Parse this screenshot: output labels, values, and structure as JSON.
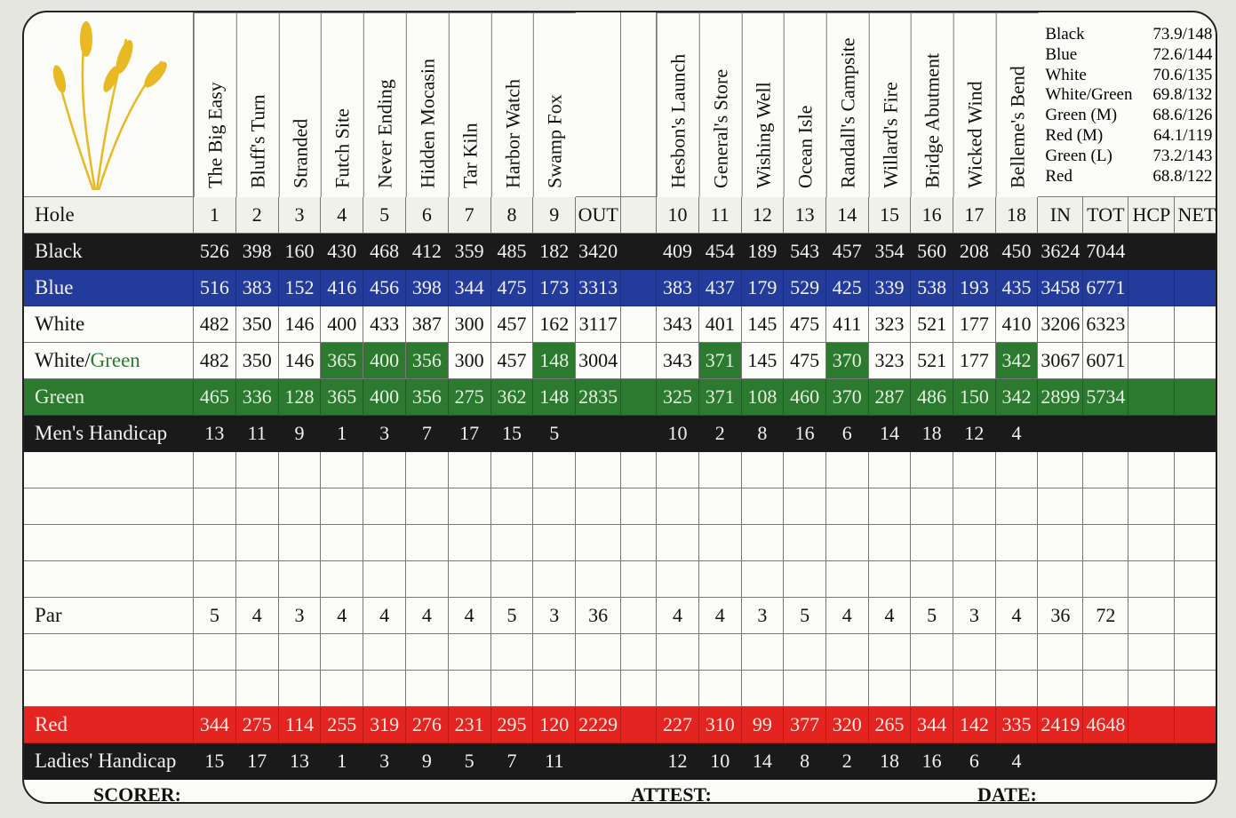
{
  "holes_front": [
    "1",
    "2",
    "3",
    "4",
    "5",
    "6",
    "7",
    "8",
    "9"
  ],
  "holes_back": [
    "10",
    "11",
    "12",
    "13",
    "14",
    "15",
    "16",
    "17",
    "18"
  ],
  "hole_names_front": [
    "The Big Easy",
    "Bluff's Turn",
    "Stranded",
    "Futch Site",
    "Never Ending",
    "Hidden Mocasin",
    "Tar Kiln",
    "Harbor Watch",
    "Swamp Fox"
  ],
  "hole_names_back": [
    "Hesbon's Launch",
    "General's Store",
    "Wishing Well",
    "Ocean Isle",
    "Randall's Campsite",
    "Willard's Fire",
    "Bridge Abutment",
    "Wicked Wind",
    "Belleme's Bend"
  ],
  "ratings": [
    {
      "tee": "Black",
      "value": "73.9/148"
    },
    {
      "tee": "Blue",
      "value": "72.6/144"
    },
    {
      "tee": "White",
      "value": "70.6/135"
    },
    {
      "tee": "White/Green",
      "value": "69.8/132"
    },
    {
      "tee": "Green (M)",
      "value": "68.6/126"
    },
    {
      "tee": "Red (M)",
      "value": "64.1/119"
    },
    {
      "tee": "Green (L)",
      "value": "73.2/143"
    },
    {
      "tee": "Red",
      "value": "68.8/122"
    }
  ],
  "header": {
    "hole": "Hole",
    "out": "OUT",
    "in": "IN",
    "tot": "TOT",
    "hcp": "HCP",
    "net": "NET"
  },
  "colors": {
    "black": "#1a1a1a",
    "blue": "#233c9b",
    "green": "#2b7a30",
    "red": "#e32420",
    "logo": "#e8b923"
  },
  "rows": [
    {
      "key": "black",
      "label": "Black",
      "front": [
        "526",
        "398",
        "160",
        "430",
        "468",
        "412",
        "359",
        "485",
        "182"
      ],
      "out": "3420",
      "back": [
        "409",
        "454",
        "189",
        "543",
        "457",
        "354",
        "560",
        "208",
        "450"
      ],
      "in": "3624",
      "tot": "7044"
    },
    {
      "key": "blue",
      "label": "Blue",
      "front": [
        "516",
        "383",
        "152",
        "416",
        "456",
        "398",
        "344",
        "475",
        "173"
      ],
      "out": "3313",
      "back": [
        "383",
        "437",
        "179",
        "529",
        "425",
        "339",
        "538",
        "193",
        "435"
      ],
      "in": "3458",
      "tot": "6771"
    },
    {
      "key": "white",
      "label": "White",
      "front": [
        "482",
        "350",
        "146",
        "400",
        "433",
        "387",
        "300",
        "457",
        "162"
      ],
      "out": "3117",
      "back": [
        "343",
        "401",
        "145",
        "475",
        "411",
        "323",
        "521",
        "177",
        "410"
      ],
      "in": "3206",
      "tot": "6323"
    },
    {
      "key": "whitegreen",
      "label": "White/",
      "label2": "Green",
      "front": [
        "482",
        "350",
        "146",
        "365",
        "400",
        "356",
        "300",
        "457",
        "148"
      ],
      "out": "3004",
      "back": [
        "343",
        "371",
        "145",
        "475",
        "370",
        "323",
        "521",
        "177",
        "342"
      ],
      "in": "3067",
      "tot": "6071",
      "green_holes": [
        "4",
        "5",
        "6",
        "9",
        "11",
        "14",
        "18"
      ]
    },
    {
      "key": "green",
      "label": "Green",
      "front": [
        "465",
        "336",
        "128",
        "365",
        "400",
        "356",
        "275",
        "362",
        "148"
      ],
      "out": "2835",
      "back": [
        "325",
        "371",
        "108",
        "460",
        "370",
        "287",
        "486",
        "150",
        "342"
      ],
      "in": "2899",
      "tot": "5734"
    },
    {
      "key": "mens",
      "label": "Men's Handicap",
      "front": [
        "13",
        "11",
        "9",
        "1",
        "3",
        "7",
        "17",
        "15",
        "5"
      ],
      "back": [
        "10",
        "2",
        "8",
        "16",
        "6",
        "14",
        "18",
        "12",
        "4"
      ]
    },
    {
      "key": "blank"
    },
    {
      "key": "blank"
    },
    {
      "key": "blank"
    },
    {
      "key": "blank"
    },
    {
      "key": "par",
      "label": "Par",
      "front": [
        "5",
        "4",
        "3",
        "4",
        "4",
        "4",
        "4",
        "5",
        "3"
      ],
      "out": "36",
      "back": [
        "4",
        "4",
        "3",
        "5",
        "4",
        "4",
        "5",
        "3",
        "4"
      ],
      "in": "36",
      "tot": "72"
    },
    {
      "key": "blank"
    },
    {
      "key": "blank"
    },
    {
      "key": "red",
      "label": "Red",
      "front": [
        "344",
        "275",
        "114",
        "255",
        "319",
        "276",
        "231",
        "295",
        "120"
      ],
      "out": "2229",
      "back": [
        "227",
        "310",
        "99",
        "377",
        "320",
        "265",
        "344",
        "142",
        "335"
      ],
      "in": "2419",
      "tot": "4648"
    },
    {
      "key": "ladies",
      "label": "Ladies' Handicap",
      "front": [
        "15",
        "17",
        "13",
        "1",
        "3",
        "9",
        "5",
        "7",
        "11"
      ],
      "back": [
        "12",
        "10",
        "14",
        "8",
        "2",
        "18",
        "16",
        "6",
        "4"
      ]
    }
  ],
  "footer": {
    "scorer": "SCORER:",
    "attest": "ATTEST:",
    "date": "DATE:"
  }
}
